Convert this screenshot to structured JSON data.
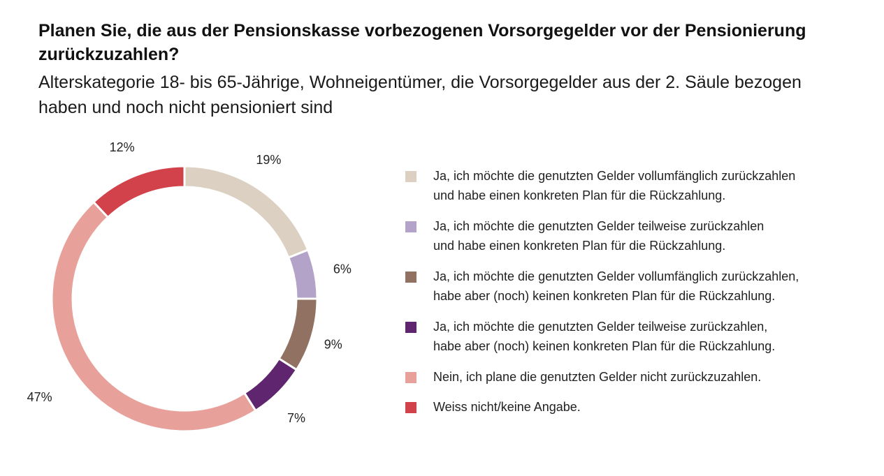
{
  "title": "Planen Sie, die aus der Pensionskasse vorbezogenen Vorsorgegelder vor der Pensionierung zurückzuzahlen?",
  "subtitle": "Alterskategorie 18- bis 65-Jährige, Wohneigentümer, die Vorsorgegelder aus der 2. Säule bezogen haben und noch nicht pensioniert sind",
  "chart_data": {
    "type": "pie",
    "donut": true,
    "unit": "%",
    "legend_position": "right",
    "categories": [
      "Ja, ich möchte die genutzten Gelder vollumfänglich zurückzahlen und habe einen konkreten Plan für die Rückzahlung.",
      "Ja, ich möchte die genutzten Gelder teilweise zurückzahlen und habe einen konkreten Plan für die Rückzahlung.",
      "Ja, ich möchte die genutzten Gelder vollumfänglich zurückzahlen, habe aber (noch) keinen konkreten Plan für die Rückzahlung.",
      "Ja, ich möchte die genutzten Gelder teilweise zurückzahlen, habe aber (noch) keinen konkreten Plan für die Rückzahlung.",
      "Nein, ich plane die genutzten Gelder nicht zurückzuzahlen.",
      "Weiss nicht/keine Angabe."
    ],
    "legend_lines": [
      [
        "Ja, ich möchte die genutzten Gelder vollumfänglich zurückzahlen",
        "und habe einen konkreten Plan für die Rückzahlung."
      ],
      [
        "Ja, ich möchte die genutzten Gelder teilweise zurückzahlen",
        "und habe einen konkreten Plan für die Rückzahlung."
      ],
      [
        "Ja, ich möchte die genutzten Gelder vollumfänglich zurückzahlen,",
        "habe aber (noch) keinen konkreten Plan für die Rückzahlung."
      ],
      [
        "Ja, ich möchte die genutzten Gelder teilweise zurückzahlen,",
        "habe aber (noch) keinen konkreten Plan für die Rückzahlung."
      ],
      [
        "Nein, ich plane die genutzten Gelder nicht zurückzuzahlen."
      ],
      [
        "Weiss nicht/keine Angabe."
      ]
    ],
    "values": [
      19,
      6,
      9,
      7,
      47,
      12
    ],
    "value_labels": [
      "19%",
      "6%",
      "9%",
      "7%",
      "47%",
      "12%"
    ],
    "colors": [
      "#dbd0c1",
      "#b3a3c8",
      "#917262",
      "#5f266f",
      "#e8a19a",
      "#d1424b"
    ]
  }
}
